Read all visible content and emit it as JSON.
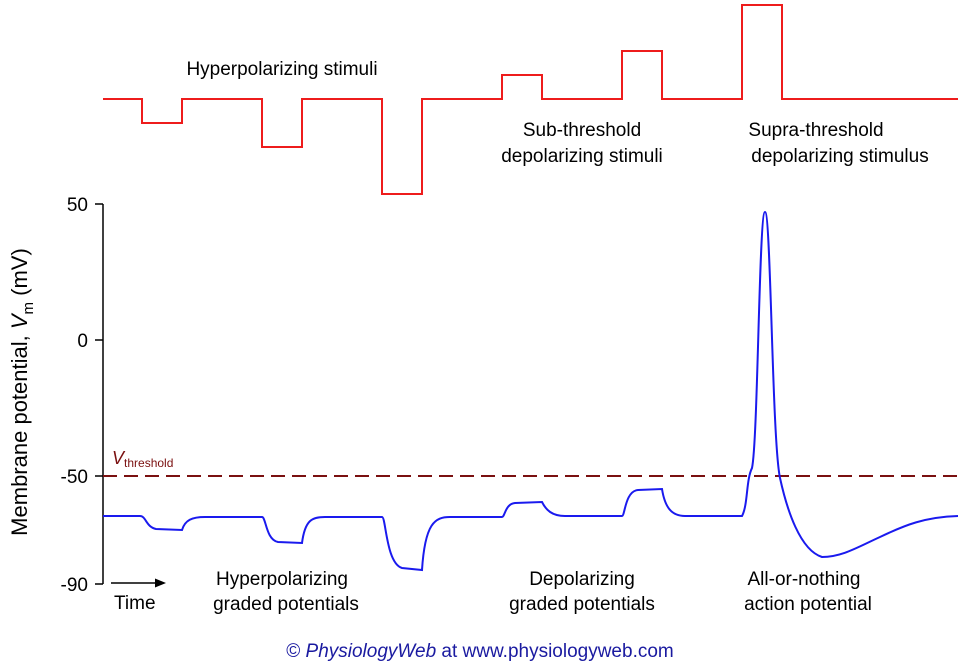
{
  "stimulus_labels": {
    "hyperpolarizing": "Hyperpolarizing stimuli",
    "subthreshold_line1": "Sub-threshold",
    "subthreshold_line2": "depolarizing stimuli",
    "suprathreshold_line1": "Supra-threshold",
    "suprathreshold_line2": "depolarizing stimulus"
  },
  "response_labels": {
    "hyper_line1": "Hyperpolarizing",
    "hyper_line2": "graded potentials",
    "depol_line1": "Depolarizing",
    "depol_line2": "graded potentials",
    "ap_line1": "All-or-nothing",
    "ap_line2": "action potential",
    "time": "Time"
  },
  "y_axis": {
    "label_main": "Membrane potential, ",
    "label_var": "V",
    "label_sub": "m",
    "label_unit": " (mV)",
    "ticks": [
      "50",
      "0",
      "-50",
      "-90"
    ]
  },
  "threshold": {
    "label_var": "V",
    "label_sub": "threshold",
    "value_mv": -50
  },
  "credit": {
    "symbol": "©",
    "brand": "PhysiologyWeb",
    "rest": " at www.physiologyweb.com"
  },
  "colors": {
    "stimulus": "#ee1c1c",
    "membrane": "#1a1aee",
    "threshold": "#7a1010",
    "axis": "#000000"
  }
}
